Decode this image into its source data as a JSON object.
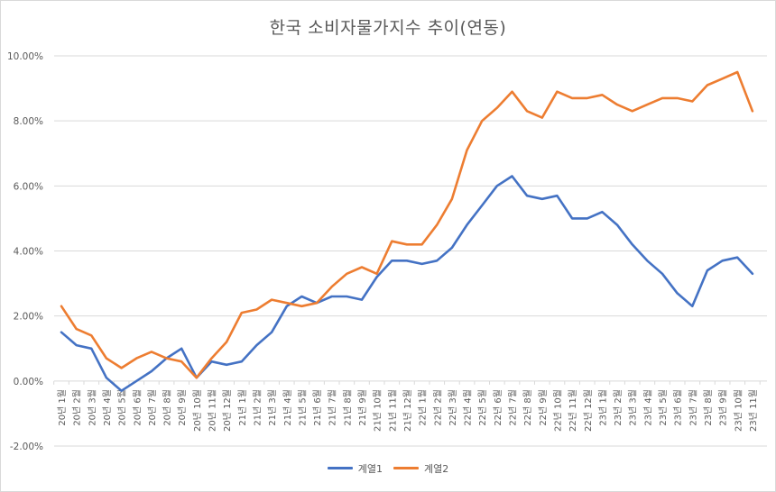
{
  "chart_data": {
    "type": "line",
    "title": "한국 소비자물가지수 추이(연동)",
    "xlabel": "",
    "ylabel": "",
    "ylim": [
      -0.02,
      0.1
    ],
    "yticks": [
      "-2.00%",
      "0.00%",
      "2.00%",
      "4.00%",
      "6.00%",
      "8.00%",
      "10.00%"
    ],
    "grid": true,
    "legend_position": "bottom",
    "categories": [
      "20년 1월",
      "20년 2월",
      "20년 3월",
      "20년 4월",
      "20년 5월",
      "20년 6월",
      "20년 7월",
      "20년 8월",
      "20년 9월",
      "20년 10월",
      "20년 11월",
      "20년 12월",
      "21년 1월",
      "21년 2월",
      "21년 3월",
      "21년 4월",
      "21년 5월",
      "21년 6월",
      "21년 7월",
      "21년 8월",
      "21년 9월",
      "21년 10월",
      "21년 11월",
      "21년 12월",
      "22년 1월",
      "22년 2월",
      "22년 3월",
      "22년 4월",
      "22년 5월",
      "22년 6월",
      "22년 7월",
      "22년 8월",
      "22년 9월",
      "22년 10월",
      "22년 11월",
      "22년 12월",
      "23년 1월",
      "23년 2월",
      "23년 3월",
      "23년 4월",
      "23년 5월",
      "23년 6월",
      "23년 7월",
      "23년 8월",
      "23년 9월",
      "23년 10월",
      "23년 11월"
    ],
    "series": [
      {
        "name": "계열1",
        "color": "#4472c4",
        "values": [
          0.015,
          0.011,
          0.01,
          0.001,
          -0.003,
          0.0,
          0.003,
          0.007,
          0.01,
          0.001,
          0.006,
          0.005,
          0.006,
          0.011,
          0.015,
          0.023,
          0.026,
          0.024,
          0.026,
          0.026,
          0.025,
          0.032,
          0.037,
          0.037,
          0.036,
          0.037,
          0.041,
          0.048,
          0.054,
          0.06,
          0.063,
          0.057,
          0.056,
          0.057,
          0.05,
          0.05,
          0.052,
          0.048,
          0.042,
          0.037,
          0.033,
          0.027,
          0.023,
          0.034,
          0.037,
          0.038,
          0.033
        ]
      },
      {
        "name": "계열2",
        "color": "#ed7d31",
        "values": [
          0.023,
          0.016,
          0.014,
          0.007,
          0.004,
          0.007,
          0.009,
          0.007,
          0.006,
          0.001,
          0.007,
          0.012,
          0.021,
          0.022,
          0.025,
          0.024,
          0.023,
          0.024,
          0.029,
          0.033,
          0.035,
          0.033,
          0.043,
          0.042,
          0.042,
          0.048,
          0.056,
          0.071,
          0.08,
          0.084,
          0.089,
          0.083,
          0.081,
          0.089,
          0.087,
          0.087,
          0.088,
          0.085,
          0.083,
          0.085,
          0.087,
          0.087,
          0.086,
          0.091,
          0.093,
          0.095,
          0.083
        ]
      }
    ]
  }
}
